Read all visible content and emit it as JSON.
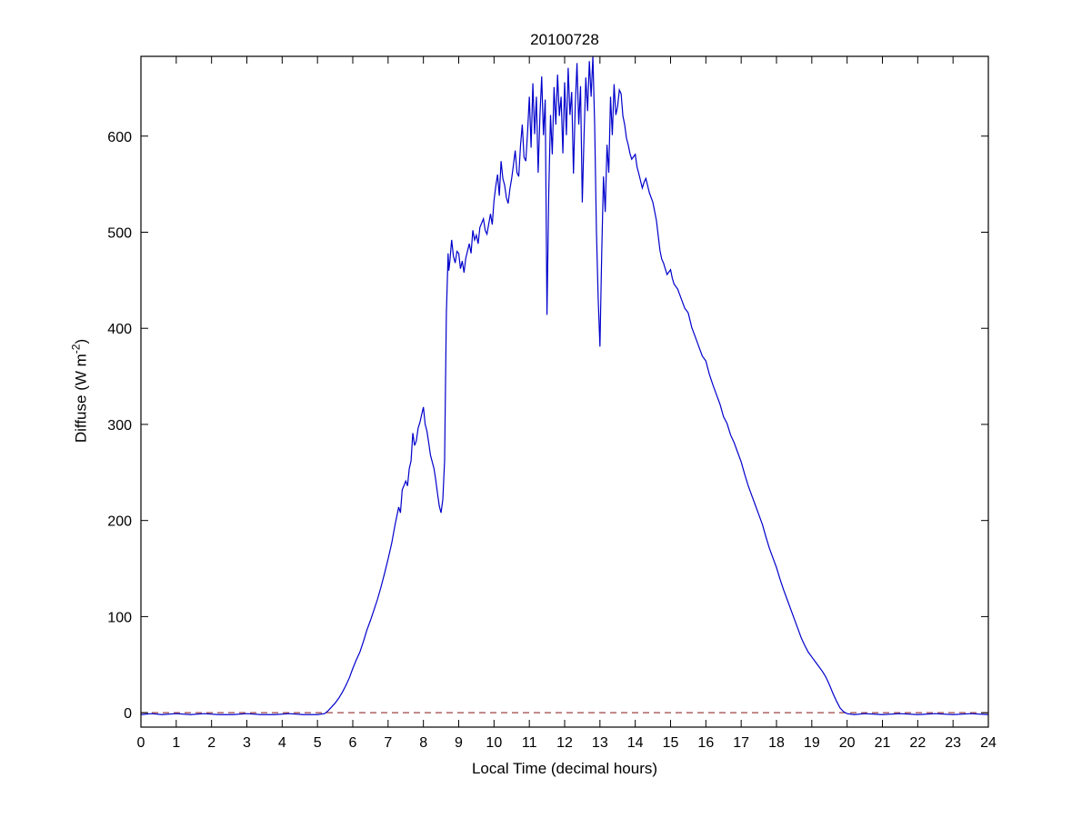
{
  "figure": {
    "title": "20100728",
    "xlabel": "Local Time (decimal hours)",
    "ylabel_prefix": "Diffuse (W m",
    "ylabel_sup": "-2",
    "ylabel_suffix": ")"
  },
  "chart_data": {
    "type": "line",
    "title": "20100728",
    "xlabel": "Local Time (decimal hours)",
    "ylabel": "Diffuse (W m^-2)",
    "xlim": [
      0,
      24
    ],
    "ylim": [
      -15,
      683
    ],
    "x_ticks": [
      0,
      1,
      2,
      3,
      4,
      5,
      6,
      7,
      8,
      9,
      10,
      11,
      12,
      13,
      14,
      15,
      16,
      17,
      18,
      19,
      20,
      21,
      22,
      23,
      24
    ],
    "y_ticks": [
      0,
      100,
      200,
      300,
      400,
      500,
      600
    ],
    "grid": false,
    "legend_position": "none",
    "axes_color": "#000000",
    "background_color": "#ffffff",
    "series": [
      {
        "name": "zero-reference",
        "style": "dashed",
        "color": "#9e4343",
        "width": 1.2,
        "points": [
          [
            0,
            0
          ],
          [
            24,
            0
          ]
        ]
      },
      {
        "name": "diffuse",
        "style": "solid",
        "color": "#0000cc",
        "width": 1.2,
        "points": [
          [
            0,
            -2
          ],
          [
            0.3,
            -1
          ],
          [
            0.6,
            -2
          ],
          [
            1,
            -1
          ],
          [
            1.4,
            -2
          ],
          [
            1.8,
            -1
          ],
          [
            2.2,
            -2
          ],
          [
            2.6,
            -2
          ],
          [
            3,
            -1
          ],
          [
            3.4,
            -2
          ],
          [
            3.8,
            -2
          ],
          [
            4.2,
            -1
          ],
          [
            4.6,
            -2
          ],
          [
            5,
            -2
          ],
          [
            5.2,
            -1
          ],
          [
            5.3,
            2
          ],
          [
            5.4,
            6
          ],
          [
            5.5,
            10
          ],
          [
            5.6,
            15
          ],
          [
            5.7,
            21
          ],
          [
            5.8,
            28
          ],
          [
            5.9,
            36
          ],
          [
            6,
            46
          ],
          [
            6.1,
            55
          ],
          [
            6.2,
            63
          ],
          [
            6.3,
            74
          ],
          [
            6.4,
            86
          ],
          [
            6.5,
            96
          ],
          [
            6.6,
            107
          ],
          [
            6.7,
            118
          ],
          [
            6.8,
            131
          ],
          [
            6.9,
            145
          ],
          [
            7,
            160
          ],
          [
            7.1,
            176
          ],
          [
            7.2,
            196
          ],
          [
            7.3,
            214
          ],
          [
            7.35,
            208
          ],
          [
            7.4,
            232
          ],
          [
            7.5,
            241
          ],
          [
            7.55,
            236
          ],
          [
            7.6,
            254
          ],
          [
            7.65,
            262
          ],
          [
            7.7,
            291
          ],
          [
            7.75,
            278
          ],
          [
            7.8,
            283
          ],
          [
            7.85,
            296
          ],
          [
            7.9,
            302
          ],
          [
            8,
            318
          ],
          [
            8.05,
            300
          ],
          [
            8.1,
            293
          ],
          [
            8.15,
            281
          ],
          [
            8.2,
            268
          ],
          [
            8.3,
            254
          ],
          [
            8.35,
            242
          ],
          [
            8.4,
            228
          ],
          [
            8.45,
            215
          ],
          [
            8.5,
            208
          ],
          [
            8.55,
            222
          ],
          [
            8.6,
            262
          ],
          [
            8.65,
            415
          ],
          [
            8.7,
            478
          ],
          [
            8.72,
            460
          ],
          [
            8.75,
            470
          ],
          [
            8.8,
            492
          ],
          [
            8.85,
            475
          ],
          [
            8.9,
            468
          ],
          [
            8.95,
            480
          ],
          [
            9,
            478
          ],
          [
            9.05,
            462
          ],
          [
            9.1,
            470
          ],
          [
            9.15,
            458
          ],
          [
            9.2,
            473
          ],
          [
            9.3,
            488
          ],
          [
            9.35,
            478
          ],
          [
            9.4,
            502
          ],
          [
            9.45,
            492
          ],
          [
            9.5,
            497
          ],
          [
            9.55,
            488
          ],
          [
            9.6,
            505
          ],
          [
            9.7,
            514
          ],
          [
            9.75,
            502
          ],
          [
            9.8,
            498
          ],
          [
            9.9,
            519
          ],
          [
            9.95,
            508
          ],
          [
            10,
            533
          ],
          [
            10.05,
            548
          ],
          [
            10.1,
            560
          ],
          [
            10.15,
            538
          ],
          [
            10.2,
            574
          ],
          [
            10.25,
            556
          ],
          [
            10.3,
            549
          ],
          [
            10.35,
            536
          ],
          [
            10.4,
            530
          ],
          [
            10.45,
            545
          ],
          [
            10.5,
            556
          ],
          [
            10.55,
            570
          ],
          [
            10.6,
            585
          ],
          [
            10.65,
            562
          ],
          [
            10.7,
            558
          ],
          [
            10.75,
            590
          ],
          [
            10.8,
            612
          ],
          [
            10.85,
            578
          ],
          [
            10.9,
            574
          ],
          [
            10.95,
            604
          ],
          [
            11,
            641
          ],
          [
            11.05,
            588
          ],
          [
            11.1,
            655
          ],
          [
            11.15,
            602
          ],
          [
            11.2,
            641
          ],
          [
            11.25,
            562
          ],
          [
            11.3,
            621
          ],
          [
            11.35,
            662
          ],
          [
            11.4,
            601
          ],
          [
            11.45,
            638
          ],
          [
            11.5,
            414
          ],
          [
            11.55,
            541
          ],
          [
            11.6,
            622
          ],
          [
            11.65,
            581
          ],
          [
            11.7,
            651
          ],
          [
            11.75,
            612
          ],
          [
            11.8,
            664
          ],
          [
            11.85,
            621
          ],
          [
            11.9,
            641
          ],
          [
            11.95,
            582
          ],
          [
            12,
            656
          ],
          [
            12.05,
            601
          ],
          [
            12.1,
            671
          ],
          [
            12.15,
            622
          ],
          [
            12.2,
            646
          ],
          [
            12.25,
            561
          ],
          [
            12.3,
            631
          ],
          [
            12.35,
            676
          ],
          [
            12.4,
            612
          ],
          [
            12.45,
            652
          ],
          [
            12.5,
            531
          ],
          [
            12.55,
            601
          ],
          [
            12.6,
            661
          ],
          [
            12.65,
            626
          ],
          [
            12.7,
            678
          ],
          [
            12.75,
            641
          ],
          [
            12.8,
            683
          ],
          [
            12.85,
            612
          ],
          [
            12.9,
            502
          ],
          [
            12.95,
            431
          ],
          [
            13,
            381
          ],
          [
            13.05,
            478
          ],
          [
            13.1,
            558
          ],
          [
            13.15,
            521
          ],
          [
            13.2,
            591
          ],
          [
            13.25,
            562
          ],
          [
            13.3,
            641
          ],
          [
            13.35,
            601
          ],
          [
            13.4,
            654
          ],
          [
            13.45,
            622
          ],
          [
            13.5,
            631
          ],
          [
            13.55,
            648
          ],
          [
            13.6,
            644
          ],
          [
            13.65,
            621
          ],
          [
            13.7,
            612
          ],
          [
            13.75,
            598
          ],
          [
            13.8,
            591
          ],
          [
            13.85,
            582
          ],
          [
            13.9,
            576
          ],
          [
            14,
            581
          ],
          [
            14.05,
            568
          ],
          [
            14.1,
            561
          ],
          [
            14.2,
            546
          ],
          [
            14.25,
            552
          ],
          [
            14.3,
            556
          ],
          [
            14.4,
            541
          ],
          [
            14.5,
            531
          ],
          [
            14.6,
            512
          ],
          [
            14.7,
            481
          ],
          [
            14.75,
            472
          ],
          [
            14.8,
            468
          ],
          [
            14.9,
            456
          ],
          [
            15,
            461
          ],
          [
            15.05,
            452
          ],
          [
            15.1,
            446
          ],
          [
            15.2,
            441
          ],
          [
            15.3,
            431
          ],
          [
            15.4,
            421
          ],
          [
            15.5,
            416
          ],
          [
            15.6,
            401
          ],
          [
            15.7,
            391
          ],
          [
            15.8,
            381
          ],
          [
            15.9,
            371
          ],
          [
            16,
            366
          ],
          [
            16.1,
            352
          ],
          [
            16.2,
            341
          ],
          [
            16.3,
            331
          ],
          [
            16.4,
            321
          ],
          [
            16.5,
            308
          ],
          [
            16.6,
            301
          ],
          [
            16.7,
            289
          ],
          [
            16.8,
            281
          ],
          [
            16.9,
            271
          ],
          [
            17,
            261
          ],
          [
            17.1,
            248
          ],
          [
            17.2,
            236
          ],
          [
            17.3,
            226
          ],
          [
            17.4,
            216
          ],
          [
            17.5,
            206
          ],
          [
            17.6,
            196
          ],
          [
            17.7,
            183
          ],
          [
            17.8,
            171
          ],
          [
            17.9,
            161
          ],
          [
            18,
            151
          ],
          [
            18.1,
            139
          ],
          [
            18.2,
            128
          ],
          [
            18.3,
            118
          ],
          [
            18.4,
            108
          ],
          [
            18.5,
            98
          ],
          [
            18.6,
            88
          ],
          [
            18.7,
            78
          ],
          [
            18.8,
            70
          ],
          [
            18.9,
            63
          ],
          [
            19,
            58
          ],
          [
            19.1,
            53
          ],
          [
            19.2,
            48
          ],
          [
            19.3,
            43
          ],
          [
            19.4,
            37
          ],
          [
            19.5,
            29
          ],
          [
            19.6,
            20
          ],
          [
            19.7,
            12
          ],
          [
            19.8,
            5
          ],
          [
            19.9,
            1
          ],
          [
            20,
            -1
          ],
          [
            20.2,
            -2
          ],
          [
            20.5,
            -1
          ],
          [
            21,
            -2
          ],
          [
            21.5,
            -1
          ],
          [
            22,
            -2
          ],
          [
            22.5,
            -1
          ],
          [
            23,
            -2
          ],
          [
            23.5,
            -1
          ],
          [
            24,
            -2
          ]
        ]
      }
    ]
  }
}
